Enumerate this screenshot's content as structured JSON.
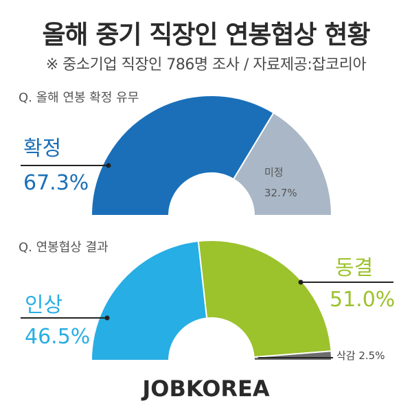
{
  "header": {
    "title": "올해 중기 직장인 연봉협상 현황",
    "subtitle": "※ 중소기업 직장인 786명 조사 / 자료제공:잡코리아"
  },
  "footer": {
    "brand": "JOBKOREA"
  },
  "chart_data": [
    {
      "type": "pie",
      "title": "Q. 올해 연봉 확정 유무",
      "shape": "half-donut",
      "slices": [
        {
          "label": "확정",
          "value": 67.3,
          "display": "67.3%",
          "color": "#1a6fb8"
        },
        {
          "label": "미정",
          "value": 32.7,
          "display": "32.7%",
          "color": "#a9b7c6"
        }
      ]
    },
    {
      "type": "pie",
      "title": "Q. 연봉협상 결과",
      "shape": "half-donut",
      "slices": [
        {
          "label": "인상",
          "value": 46.5,
          "display": "46.5%",
          "color": "#27aee4"
        },
        {
          "label": "동결",
          "value": 51.0,
          "display": "51.0%",
          "color": "#9cc22c"
        },
        {
          "label": "삭감",
          "value": 2.5,
          "display": "2.5%",
          "color": "#6d6d6d"
        }
      ]
    }
  ]
}
